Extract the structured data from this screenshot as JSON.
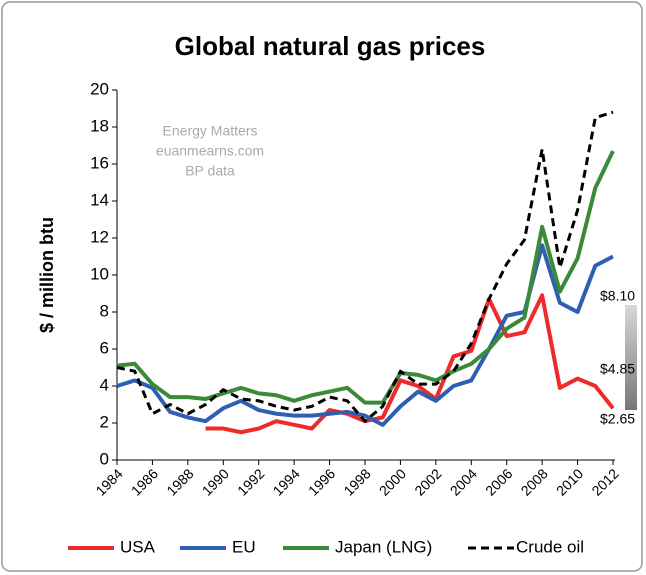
{
  "chart_data": {
    "type": "line",
    "title": "Global natural gas prices",
    "y_label": "$ / million btu",
    "watermark": [
      "Energy Matters",
      "euanmearns.com",
      "BP data"
    ],
    "annotations": [
      "$8.10",
      "$4.85",
      "$2.65"
    ],
    "x": [
      1984,
      1985,
      1986,
      1987,
      1988,
      1989,
      1990,
      1991,
      1992,
      1993,
      1994,
      1995,
      1996,
      1997,
      1998,
      1999,
      2000,
      2001,
      2002,
      2003,
      2004,
      2005,
      2006,
      2007,
      2008,
      2009,
      2010,
      2011,
      2012
    ],
    "xlim": [
      1984,
      2012
    ],
    "xticks": [
      1984,
      1986,
      1988,
      1990,
      1992,
      1994,
      1996,
      1998,
      2000,
      2002,
      2004,
      2006,
      2008,
      2010,
      2012
    ],
    "ylim": [
      0,
      20
    ],
    "yticks": [
      0,
      2,
      4,
      6,
      8,
      10,
      12,
      14,
      16,
      18,
      20
    ],
    "grid": false,
    "legend": "bottom",
    "series": [
      {
        "name": "USA",
        "color": "#ee2a2a",
        "values": [
          null,
          null,
          null,
          null,
          null,
          1.7,
          1.7,
          1.5,
          1.7,
          2.1,
          1.9,
          1.7,
          2.7,
          2.5,
          2.1,
          2.3,
          4.3,
          4.0,
          3.3,
          5.6,
          5.9,
          8.7,
          6.7,
          6.9,
          8.9,
          3.9,
          4.4,
          4.0,
          2.8
        ]
      },
      {
        "name": "EU",
        "color": "#2f5fb3",
        "values": [
          4.0,
          4.3,
          3.9,
          2.6,
          2.3,
          2.1,
          2.8,
          3.2,
          2.7,
          2.5,
          2.4,
          2.4,
          2.5,
          2.6,
          2.4,
          1.9,
          2.9,
          3.7,
          3.2,
          4.0,
          4.3,
          6.0,
          7.8,
          8.0,
          11.6,
          8.5,
          8.0,
          10.5,
          11.0
        ]
      },
      {
        "name": "Japan (LNG)",
        "color": "#3a8a3a",
        "values": [
          5.1,
          5.2,
          4.1,
          3.4,
          3.4,
          3.3,
          3.6,
          3.9,
          3.6,
          3.5,
          3.2,
          3.5,
          3.7,
          3.9,
          3.1,
          3.1,
          4.7,
          4.6,
          4.3,
          4.8,
          5.2,
          6.0,
          7.1,
          7.7,
          12.6,
          9.1,
          10.9,
          14.7,
          16.7
        ]
      },
      {
        "name": "Crude oil",
        "color": "#000000",
        "dash": true,
        "values": [
          5.0,
          4.8,
          2.5,
          3.0,
          2.5,
          3.0,
          3.8,
          3.3,
          3.2,
          2.9,
          2.7,
          2.9,
          3.4,
          3.2,
          2.1,
          2.9,
          4.8,
          4.1,
          4.1,
          4.8,
          6.3,
          8.7,
          10.6,
          11.9,
          16.8,
          10.4,
          13.5,
          18.5,
          18.8
        ]
      }
    ]
  }
}
